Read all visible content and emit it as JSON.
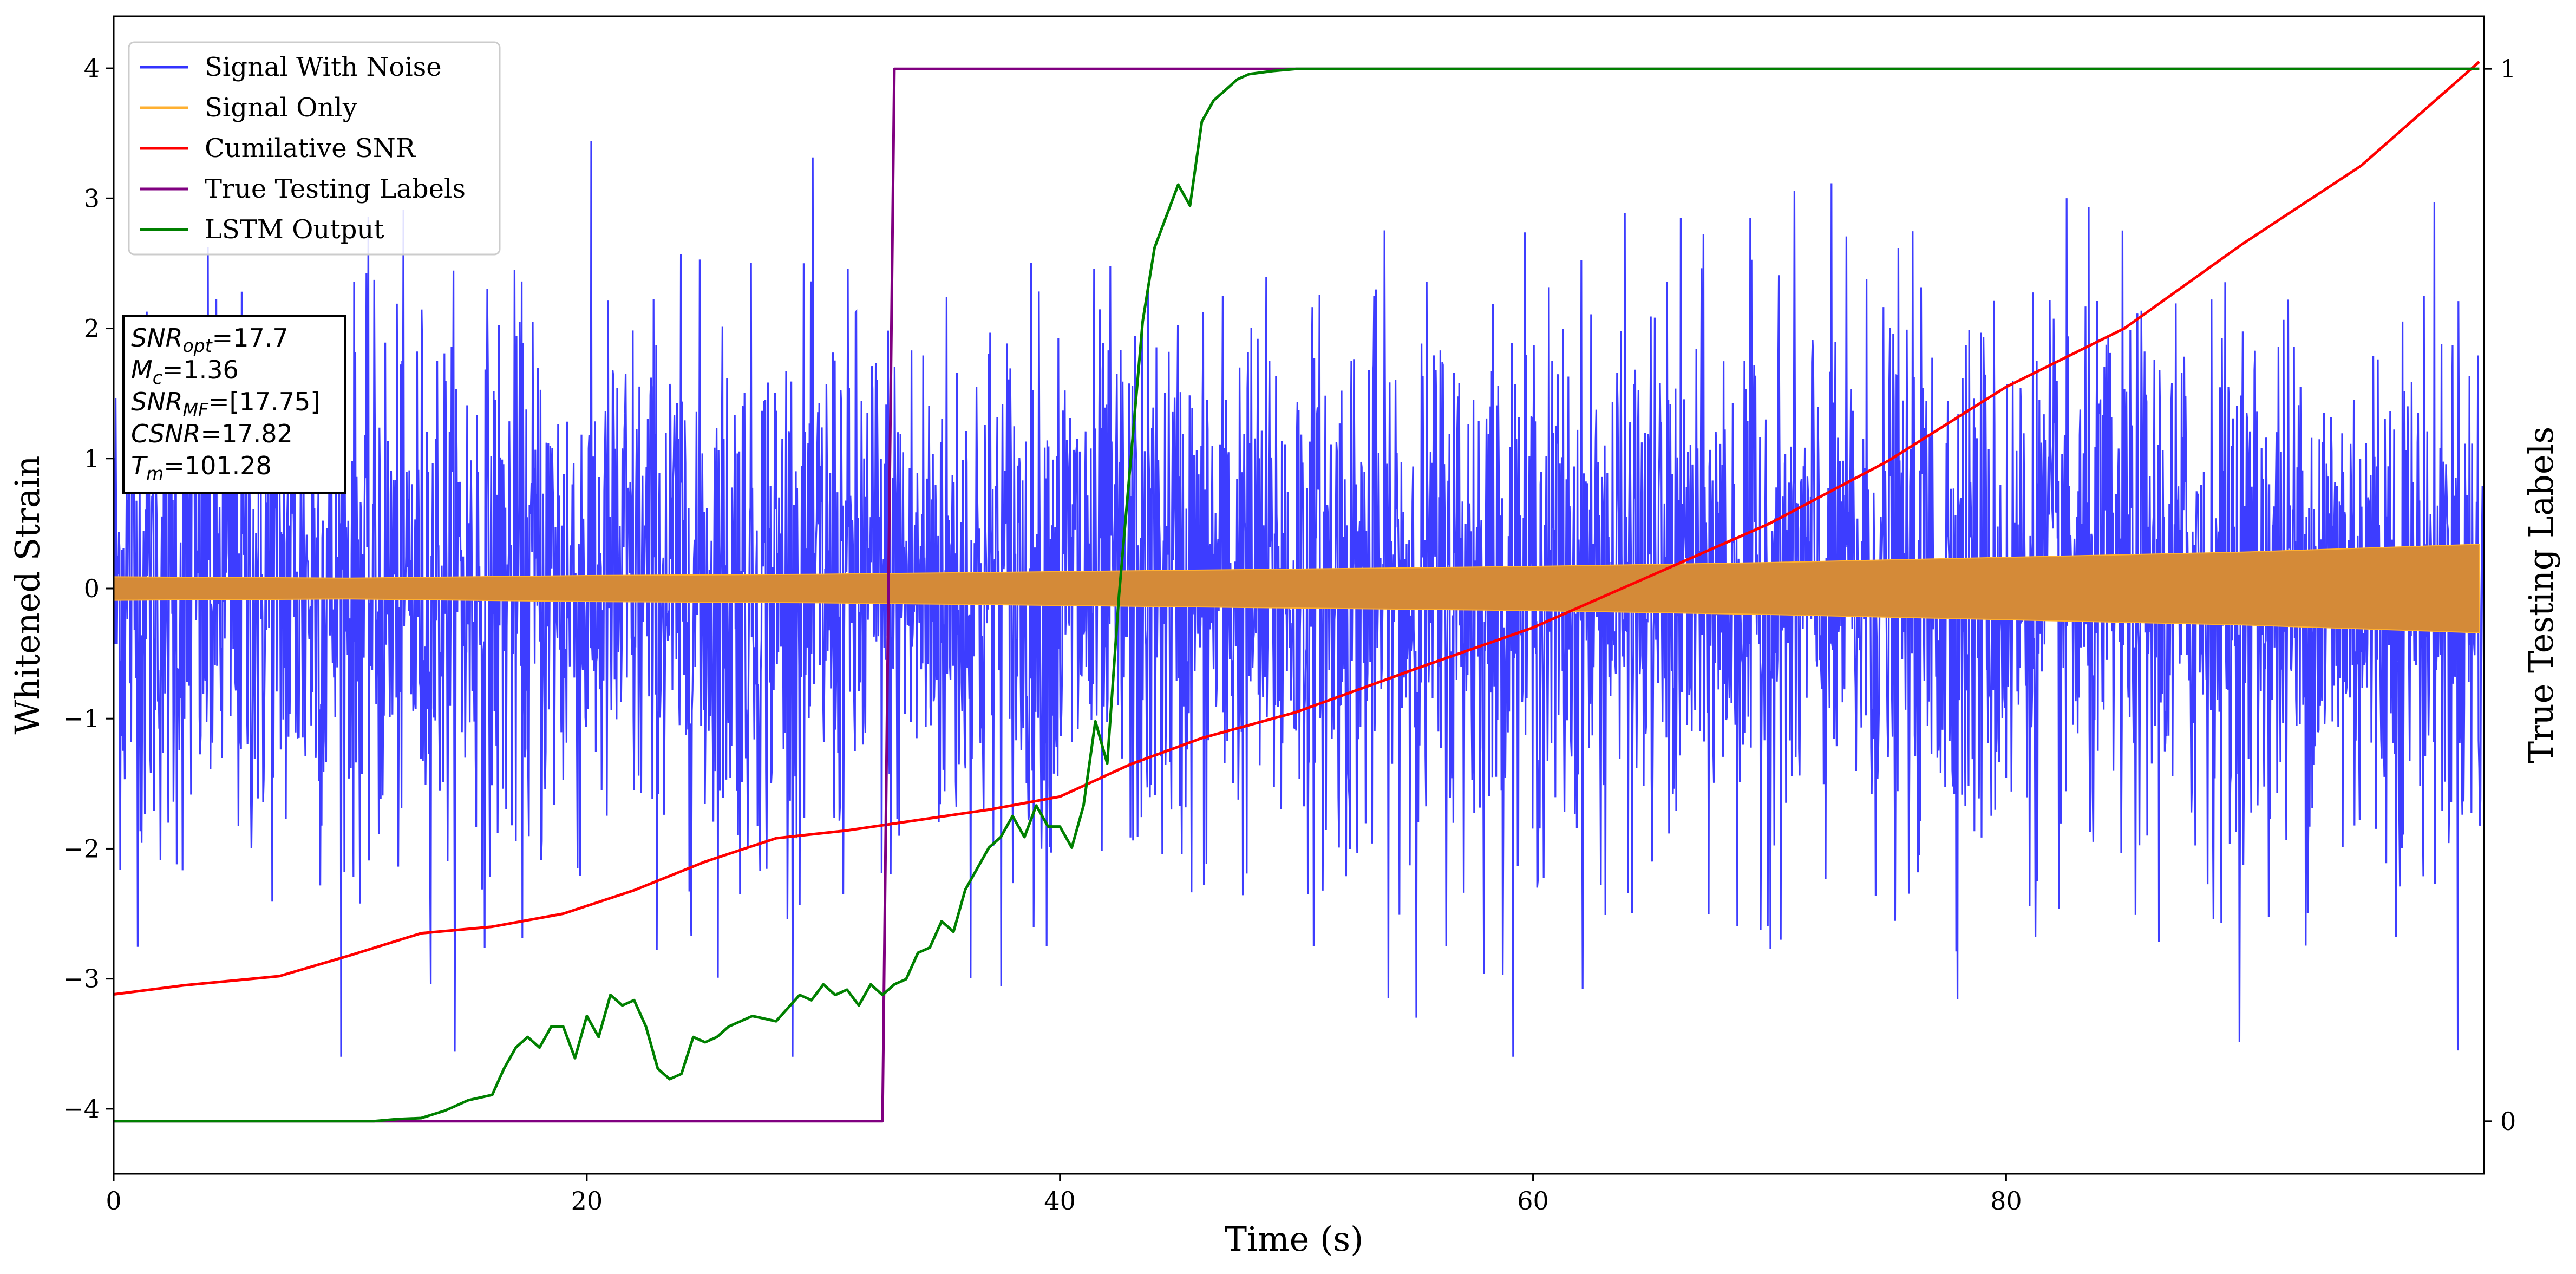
{
  "chart_data": {
    "type": "line",
    "xlabel": "Time (s)",
    "ylabel": "Whitened Strain",
    "y2label": "True Testing Labels",
    "xlim": [
      0,
      100.2
    ],
    "ylim": [
      -4.5,
      4.4
    ],
    "y2lim": [
      -0.05,
      1.05
    ],
    "xticks": [
      0,
      20,
      40,
      60,
      80
    ],
    "yticks": [
      -4,
      -3,
      -2,
      -1,
      0,
      1,
      2,
      3,
      4
    ],
    "y2ticks": [
      0,
      1
    ],
    "legend_position": "top-left",
    "grid": false,
    "annotation": [
      {
        "main": "SNR",
        "sub": "opt",
        "rest": "=17.7"
      },
      {
        "main": "M",
        "sub": "c",
        "rest": "=1.36"
      },
      {
        "main": "SNR",
        "sub": "MF",
        "rest": "=[17.75]"
      },
      {
        "main": "CSNR",
        "sub": "",
        "rest": "=17.82"
      },
      {
        "main": "T",
        "sub": "m",
        "rest": "=101.28"
      }
    ],
    "series": [
      {
        "name": "Signal With Noise",
        "color": "#3333ff",
        "axis": "left",
        "kind": "noise",
        "envelope_range": [
          -3.6,
          4.1
        ]
      },
      {
        "name": "Signal Only",
        "color": "#ffb030",
        "fill_color": "#d48a38",
        "axis": "left",
        "kind": "band",
        "x": [
          0,
          10,
          20,
          30,
          40,
          50,
          60,
          70,
          80,
          90,
          100
        ],
        "upper": [
          0.09,
          0.08,
          0.1,
          0.11,
          0.13,
          0.15,
          0.17,
          0.2,
          0.24,
          0.28,
          0.34
        ],
        "lower": [
          -0.09,
          -0.08,
          -0.1,
          -0.11,
          -0.13,
          -0.15,
          -0.17,
          -0.2,
          -0.24,
          -0.28,
          -0.34
        ]
      },
      {
        "name": "Cumilative SNR",
        "color": "#ff0000",
        "axis": "left",
        "x": [
          0,
          3,
          7,
          10,
          13,
          16,
          19,
          22,
          25,
          28,
          31,
          34,
          37,
          40,
          43,
          46,
          50,
          55,
          60,
          65,
          70,
          75,
          80,
          85,
          90,
          95,
          100
        ],
        "y": [
          -3.12,
          -3.05,
          -2.98,
          -2.82,
          -2.65,
          -2.6,
          -2.5,
          -2.32,
          -2.1,
          -1.92,
          -1.86,
          -1.78,
          -1.7,
          -1.6,
          -1.35,
          -1.15,
          -0.95,
          -0.62,
          -0.3,
          0.1,
          0.5,
          0.98,
          1.55,
          2.0,
          2.65,
          3.25,
          4.05
        ]
      },
      {
        "name": "True Testing Labels",
        "color": "#800080",
        "axis": "right",
        "x": [
          0,
          32.5,
          33.0,
          100
        ],
        "y": [
          0,
          0,
          1,
          1
        ]
      },
      {
        "name": "LSTM Output",
        "color": "#008000",
        "axis": "right",
        "x": [
          0,
          11,
          12,
          13,
          14,
          15,
          16,
          16.5,
          17,
          17.5,
          18,
          18.5,
          19,
          19.5,
          20,
          20.5,
          21,
          21.5,
          22,
          22.5,
          23,
          23.5,
          24,
          24.5,
          25,
          25.5,
          26,
          27,
          28,
          29,
          29.5,
          30,
          30.5,
          31,
          31.5,
          32,
          32.5,
          33,
          33.5,
          34,
          34.5,
          35,
          35.5,
          36,
          36.5,
          37,
          37.5,
          38,
          38.5,
          39,
          39.5,
          40,
          40.5,
          41,
          41.5,
          42,
          42.5,
          43,
          43.5,
          44,
          44.5,
          45,
          45.5,
          46,
          46.5,
          47,
          47.5,
          48,
          49,
          50,
          51,
          52,
          53,
          54,
          60,
          100
        ],
        "y": [
          0,
          0,
          0.002,
          0.003,
          0.01,
          0.02,
          0.025,
          0.05,
          0.07,
          0.08,
          0.07,
          0.09,
          0.09,
          0.06,
          0.1,
          0.08,
          0.12,
          0.11,
          0.115,
          0.09,
          0.05,
          0.04,
          0.045,
          0.08,
          0.075,
          0.08,
          0.09,
          0.1,
          0.095,
          0.12,
          0.115,
          0.13,
          0.12,
          0.125,
          0.11,
          0.13,
          0.12,
          0.13,
          0.135,
          0.16,
          0.165,
          0.19,
          0.18,
          0.22,
          0.24,
          0.26,
          0.27,
          0.29,
          0.27,
          0.3,
          0.28,
          0.28,
          0.26,
          0.3,
          0.38,
          0.34,
          0.5,
          0.63,
          0.76,
          0.83,
          0.86,
          0.89,
          0.87,
          0.95,
          0.97,
          0.98,
          0.99,
          0.995,
          0.998,
          1,
          1,
          1,
          1,
          1,
          1,
          1
        ]
      }
    ]
  }
}
